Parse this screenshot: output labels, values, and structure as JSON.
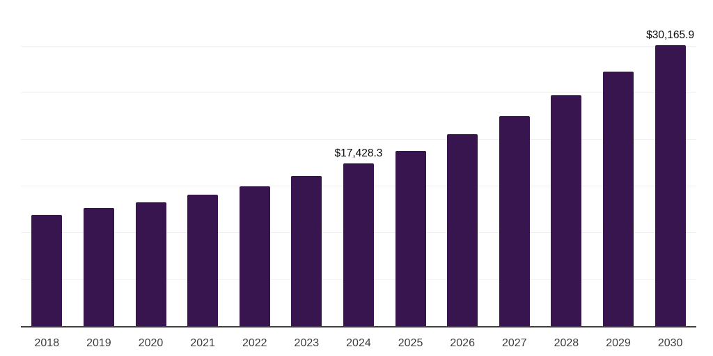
{
  "chart_data": {
    "type": "bar",
    "title": "",
    "xlabel": "",
    "ylabel": "",
    "categories": [
      "2018",
      "2019",
      "2020",
      "2021",
      "2022",
      "2023",
      "2024",
      "2025",
      "2026",
      "2027",
      "2028",
      "2029",
      "2030"
    ],
    "values": [
      11950,
      12690,
      13290,
      14130,
      15030,
      16140,
      17428.3,
      18820,
      20610,
      22550,
      24780,
      27320,
      30165.9
    ],
    "annotations": [
      {
        "index": 6,
        "text": "$17,428.3"
      },
      {
        "index": 12,
        "text": "$30,165.9"
      }
    ],
    "ylim": [
      0,
      35000
    ],
    "gridline_step": 5000,
    "grid": true,
    "legend": "none",
    "y_axis_tick_labels_visible": false,
    "colors": {
      "bar": "#38154e",
      "gridline": "#f0f0f2",
      "axis_line": "#3f3f3f",
      "tick_label": "#3d3d3d",
      "annotation": "#0a0a0a",
      "background": "#ffffff"
    }
  }
}
